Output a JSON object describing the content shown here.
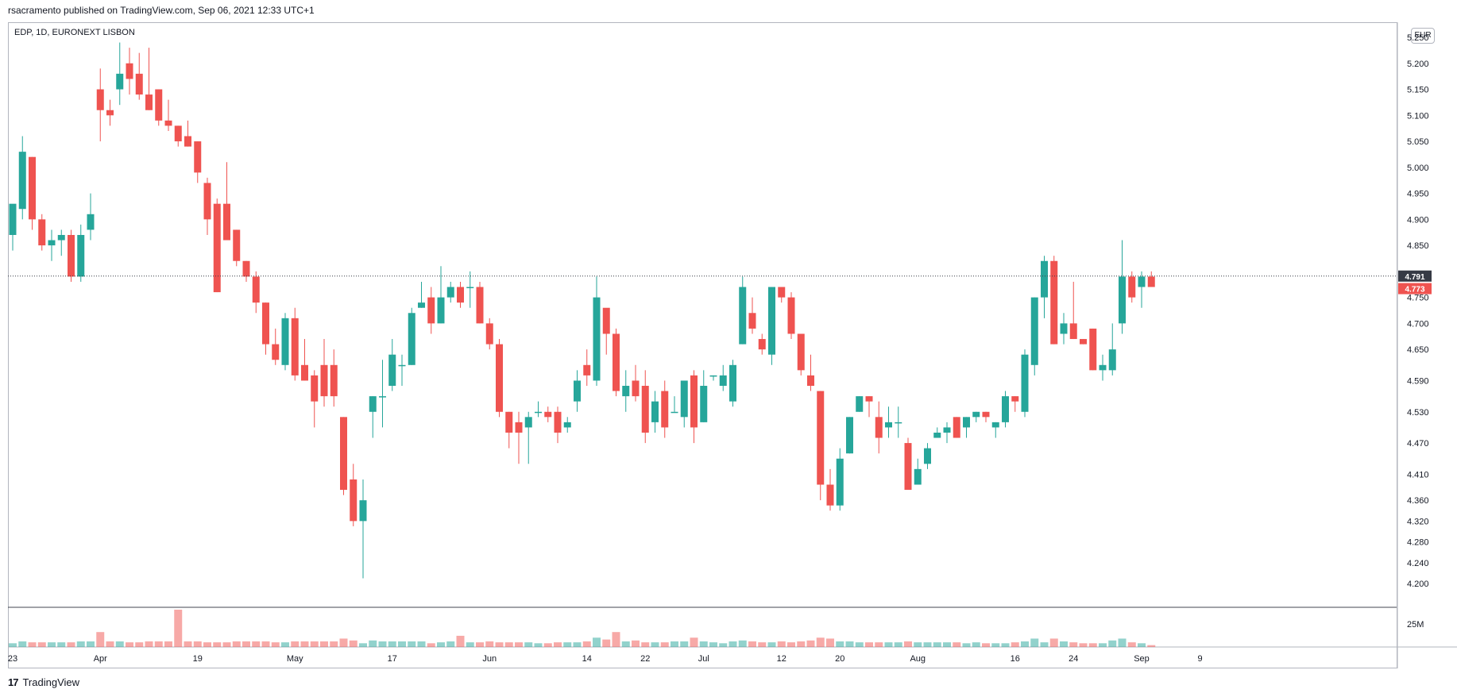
{
  "header": {
    "published": "rsacramento published on TradingView.com, Sep 06, 2021 12:33 UTC+1"
  },
  "symbol_info": "EDP, 1D, EURONEXT LISBON",
  "currency_label": "EUR",
  "footer": {
    "brand": "TradingView",
    "logo_glyph": "17"
  },
  "colors": {
    "up": "#26a69a",
    "down": "#ef5350",
    "last_tag": "#ef5350",
    "prev_tag": "#363a45",
    "grid_border": "#b2b5be"
  },
  "chart_data": {
    "type": "candlestick",
    "instrument": "EDP",
    "timeframe": "1D",
    "exchange": "EURONEXT LISBON",
    "currency": "EUR",
    "y_ticks": [
      "5.250",
      "5.200",
      "5.150",
      "5.100",
      "5.050",
      "5.000",
      "4.950",
      "4.900",
      "4.850",
      "4.750",
      "4.700",
      "4.650",
      "4.590",
      "4.530",
      "4.470",
      "4.410",
      "4.360",
      "4.320",
      "4.280",
      "4.240",
      "4.200"
    ],
    "x_ticks": [
      "23",
      "Apr",
      "19",
      "May",
      "17",
      "Jun",
      "14",
      "22",
      "Jul",
      "12",
      "20",
      "Aug",
      "16",
      "24",
      "Sep",
      "9"
    ],
    "x_tick_index": [
      0,
      9,
      19,
      29,
      39,
      49,
      59,
      65,
      71,
      79,
      85,
      93,
      103,
      109,
      116,
      122
    ],
    "price_tags": {
      "last": "4.773",
      "prev": "4.791"
    },
    "volume_axis_label": "25M",
    "volume_scale_max": 40,
    "candles": [
      {
        "o": 4.87,
        "h": 4.92,
        "l": 4.84,
        "c": 4.93,
        "v": 4
      },
      {
        "o": 4.92,
        "h": 5.06,
        "l": 4.9,
        "c": 5.03,
        "v": 6
      },
      {
        "o": 5.02,
        "h": 5.02,
        "l": 4.88,
        "c": 4.9,
        "v": 5
      },
      {
        "o": 4.9,
        "h": 4.91,
        "l": 4.84,
        "c": 4.85,
        "v": 5
      },
      {
        "o": 4.85,
        "h": 4.88,
        "l": 4.82,
        "c": 4.86,
        "v": 5
      },
      {
        "o": 4.86,
        "h": 4.88,
        "l": 4.83,
        "c": 4.87,
        "v": 5
      },
      {
        "o": 4.87,
        "h": 4.88,
        "l": 4.78,
        "c": 4.79,
        "v": 5
      },
      {
        "o": 4.79,
        "h": 4.89,
        "l": 4.78,
        "c": 4.87,
        "v": 6
      },
      {
        "o": 4.88,
        "h": 4.95,
        "l": 4.86,
        "c": 4.91,
        "v": 6
      },
      {
        "o": 5.15,
        "h": 5.19,
        "l": 5.05,
        "c": 5.11,
        "v": 16
      },
      {
        "o": 5.11,
        "h": 5.13,
        "l": 5.08,
        "c": 5.1,
        "v": 6
      },
      {
        "o": 5.15,
        "h": 5.24,
        "l": 5.12,
        "c": 5.18,
        "v": 6
      },
      {
        "o": 5.2,
        "h": 5.23,
        "l": 5.14,
        "c": 5.17,
        "v": 5
      },
      {
        "o": 5.18,
        "h": 5.22,
        "l": 5.13,
        "c": 5.14,
        "v": 5
      },
      {
        "o": 5.14,
        "h": 5.23,
        "l": 5.11,
        "c": 5.11,
        "v": 6
      },
      {
        "o": 5.15,
        "h": 5.15,
        "l": 5.08,
        "c": 5.09,
        "v": 6
      },
      {
        "o": 5.09,
        "h": 5.13,
        "l": 5.07,
        "c": 5.08,
        "v": 6
      },
      {
        "o": 5.08,
        "h": 5.08,
        "l": 5.04,
        "c": 5.05,
        "v": 40
      },
      {
        "o": 5.06,
        "h": 5.09,
        "l": 5.04,
        "c": 5.04,
        "v": 6
      },
      {
        "o": 5.05,
        "h": 5.05,
        "l": 4.97,
        "c": 4.99,
        "v": 6
      },
      {
        "o": 4.97,
        "h": 4.98,
        "l": 4.87,
        "c": 4.9,
        "v": 5
      },
      {
        "o": 4.93,
        "h": 4.94,
        "l": 4.76,
        "c": 4.76,
        "v": 5
      },
      {
        "o": 4.93,
        "h": 5.01,
        "l": 4.86,
        "c": 4.86,
        "v": 5
      },
      {
        "o": 4.88,
        "h": 4.88,
        "l": 4.81,
        "c": 4.82,
        "v": 6
      },
      {
        "o": 4.82,
        "h": 4.82,
        "l": 4.78,
        "c": 4.79,
        "v": 6
      },
      {
        "o": 4.79,
        "h": 4.8,
        "l": 4.72,
        "c": 4.74,
        "v": 6
      },
      {
        "o": 4.74,
        "h": 4.74,
        "l": 4.64,
        "c": 4.66,
        "v": 6
      },
      {
        "o": 4.66,
        "h": 4.69,
        "l": 4.62,
        "c": 4.63,
        "v": 5
      },
      {
        "o": 4.62,
        "h": 4.72,
        "l": 4.61,
        "c": 4.71,
        "v": 5
      },
      {
        "o": 4.71,
        "h": 4.73,
        "l": 4.59,
        "c": 4.6,
        "v": 6
      },
      {
        "o": 4.62,
        "h": 4.67,
        "l": 4.59,
        "c": 4.59,
        "v": 6
      },
      {
        "o": 4.6,
        "h": 4.61,
        "l": 4.5,
        "c": 4.55,
        "v": 6
      },
      {
        "o": 4.62,
        "h": 4.67,
        "l": 4.54,
        "c": 4.56,
        "v": 6
      },
      {
        "o": 4.62,
        "h": 4.65,
        "l": 4.54,
        "c": 4.56,
        "v": 6
      },
      {
        "o": 4.52,
        "h": 4.52,
        "l": 4.37,
        "c": 4.38,
        "v": 9
      },
      {
        "o": 4.4,
        "h": 4.43,
        "l": 4.31,
        "c": 4.32,
        "v": 7
      },
      {
        "o": 4.32,
        "h": 4.4,
        "l": 4.21,
        "c": 4.36,
        "v": 4
      },
      {
        "o": 4.53,
        "h": 4.56,
        "l": 4.48,
        "c": 4.56,
        "v": 7
      },
      {
        "o": 4.56,
        "h": 4.63,
        "l": 4.5,
        "c": 4.56,
        "v": 6
      },
      {
        "o": 4.58,
        "h": 4.67,
        "l": 4.57,
        "c": 4.64,
        "v": 6
      },
      {
        "o": 4.62,
        "h": 4.64,
        "l": 4.58,
        "c": 4.62,
        "v": 6
      },
      {
        "o": 4.62,
        "h": 4.73,
        "l": 4.62,
        "c": 4.72,
        "v": 6
      },
      {
        "o": 4.73,
        "h": 4.78,
        "l": 4.73,
        "c": 4.74,
        "v": 6
      },
      {
        "o": 4.75,
        "h": 4.77,
        "l": 4.68,
        "c": 4.7,
        "v": 4
      },
      {
        "o": 4.7,
        "h": 4.81,
        "l": 4.7,
        "c": 4.75,
        "v": 5
      },
      {
        "o": 4.75,
        "h": 4.78,
        "l": 4.74,
        "c": 4.77,
        "v": 6
      },
      {
        "o": 4.77,
        "h": 4.78,
        "l": 4.73,
        "c": 4.74,
        "v": 12
      },
      {
        "o": 4.77,
        "h": 4.8,
        "l": 4.73,
        "c": 4.77,
        "v": 5
      },
      {
        "o": 4.77,
        "h": 4.78,
        "l": 4.7,
        "c": 4.7,
        "v": 5
      },
      {
        "o": 4.7,
        "h": 4.71,
        "l": 4.65,
        "c": 4.66,
        "v": 6
      },
      {
        "o": 4.66,
        "h": 4.67,
        "l": 4.52,
        "c": 4.53,
        "v": 5
      },
      {
        "o": 4.53,
        "h": 4.53,
        "l": 4.46,
        "c": 4.49,
        "v": 5
      },
      {
        "o": 4.51,
        "h": 4.53,
        "l": 4.43,
        "c": 4.49,
        "v": 5
      },
      {
        "o": 4.5,
        "h": 4.53,
        "l": 4.43,
        "c": 4.52,
        "v": 5
      },
      {
        "o": 4.53,
        "h": 4.55,
        "l": 4.52,
        "c": 4.53,
        "v": 4
      },
      {
        "o": 4.53,
        "h": 4.54,
        "l": 4.51,
        "c": 4.52,
        "v": 4
      },
      {
        "o": 4.53,
        "h": 4.54,
        "l": 4.47,
        "c": 4.49,
        "v": 5
      },
      {
        "o": 4.5,
        "h": 4.52,
        "l": 4.49,
        "c": 4.51,
        "v": 5
      },
      {
        "o": 4.55,
        "h": 4.61,
        "l": 4.53,
        "c": 4.59,
        "v": 5
      },
      {
        "o": 4.62,
        "h": 4.65,
        "l": 4.58,
        "c": 4.6,
        "v": 6
      },
      {
        "o": 4.59,
        "h": 4.79,
        "l": 4.58,
        "c": 4.75,
        "v": 10
      },
      {
        "o": 4.73,
        "h": 4.72,
        "l": 4.64,
        "c": 4.68,
        "v": 8
      },
      {
        "o": 4.68,
        "h": 4.69,
        "l": 4.56,
        "c": 4.57,
        "v": 16
      },
      {
        "o": 4.56,
        "h": 4.61,
        "l": 4.53,
        "c": 4.58,
        "v": 6
      },
      {
        "o": 4.59,
        "h": 4.62,
        "l": 4.55,
        "c": 4.56,
        "v": 7
      },
      {
        "o": 4.58,
        "h": 4.61,
        "l": 4.47,
        "c": 4.49,
        "v": 5
      },
      {
        "o": 4.51,
        "h": 4.57,
        "l": 4.49,
        "c": 4.55,
        "v": 5
      },
      {
        "o": 4.57,
        "h": 4.59,
        "l": 4.48,
        "c": 4.5,
        "v": 5
      },
      {
        "o": 4.53,
        "h": 4.56,
        "l": 4.53,
        "c": 4.53,
        "v": 6
      },
      {
        "o": 4.52,
        "h": 4.58,
        "l": 4.5,
        "c": 4.59,
        "v": 6
      },
      {
        "o": 4.6,
        "h": 4.61,
        "l": 4.47,
        "c": 4.5,
        "v": 10
      },
      {
        "o": 4.51,
        "h": 4.61,
        "l": 4.51,
        "c": 4.58,
        "v": 6
      },
      {
        "o": 4.6,
        "h": 4.6,
        "l": 4.59,
        "c": 4.6,
        "v": 5
      },
      {
        "o": 4.58,
        "h": 4.62,
        "l": 4.57,
        "c": 4.6,
        "v": 4
      },
      {
        "o": 4.55,
        "h": 4.63,
        "l": 4.54,
        "c": 4.62,
        "v": 6
      },
      {
        "o": 4.66,
        "h": 4.79,
        "l": 4.66,
        "c": 4.77,
        "v": 7
      },
      {
        "o": 4.72,
        "h": 4.75,
        "l": 4.68,
        "c": 4.69,
        "v": 6
      },
      {
        "o": 4.67,
        "h": 4.68,
        "l": 4.64,
        "c": 4.65,
        "v": 5
      },
      {
        "o": 4.64,
        "h": 4.77,
        "l": 4.62,
        "c": 4.77,
        "v": 5
      },
      {
        "o": 4.77,
        "h": 4.77,
        "l": 4.74,
        "c": 4.75,
        "v": 6
      },
      {
        "o": 4.75,
        "h": 4.76,
        "l": 4.67,
        "c": 4.68,
        "v": 5
      },
      {
        "o": 4.68,
        "h": 4.68,
        "l": 4.6,
        "c": 4.61,
        "v": 6
      },
      {
        "o": 4.6,
        "h": 4.64,
        "l": 4.57,
        "c": 4.58,
        "v": 7
      },
      {
        "o": 4.57,
        "h": 4.57,
        "l": 4.36,
        "c": 4.39,
        "v": 10
      },
      {
        "o": 4.39,
        "h": 4.42,
        "l": 4.34,
        "c": 4.35,
        "v": 9
      },
      {
        "o": 4.35,
        "h": 4.46,
        "l": 4.34,
        "c": 4.44,
        "v": 6
      },
      {
        "o": 4.45,
        "h": 4.52,
        "l": 4.45,
        "c": 4.52,
        "v": 6
      },
      {
        "o": 4.53,
        "h": 4.56,
        "l": 4.53,
        "c": 4.56,
        "v": 5
      },
      {
        "o": 4.56,
        "h": 4.56,
        "l": 4.52,
        "c": 4.55,
        "v": 5
      },
      {
        "o": 4.52,
        "h": 4.55,
        "l": 4.45,
        "c": 4.48,
        "v": 5
      },
      {
        "o": 4.5,
        "h": 4.54,
        "l": 4.48,
        "c": 4.51,
        "v": 5
      },
      {
        "o": 4.51,
        "h": 4.54,
        "l": 4.48,
        "c": 4.51,
        "v": 5
      },
      {
        "o": 4.47,
        "h": 4.48,
        "l": 4.38,
        "c": 4.38,
        "v": 6
      },
      {
        "o": 4.39,
        "h": 4.44,
        "l": 4.39,
        "c": 4.42,
        "v": 5
      },
      {
        "o": 4.43,
        "h": 4.47,
        "l": 4.42,
        "c": 4.46,
        "v": 5
      },
      {
        "o": 4.48,
        "h": 4.5,
        "l": 4.48,
        "c": 4.49,
        "v": 5
      },
      {
        "o": 4.49,
        "h": 4.51,
        "l": 4.47,
        "c": 4.5,
        "v": 5
      },
      {
        "o": 4.52,
        "h": 4.52,
        "l": 4.48,
        "c": 4.48,
        "v": 5
      },
      {
        "o": 4.5,
        "h": 4.52,
        "l": 4.48,
        "c": 4.52,
        "v": 4
      },
      {
        "o": 4.52,
        "h": 4.53,
        "l": 4.51,
        "c": 4.53,
        "v": 5
      },
      {
        "o": 4.53,
        "h": 4.53,
        "l": 4.51,
        "c": 4.52,
        "v": 4
      },
      {
        "o": 4.5,
        "h": 4.51,
        "l": 4.48,
        "c": 4.51,
        "v": 4
      },
      {
        "o": 4.51,
        "h": 4.57,
        "l": 4.5,
        "c": 4.56,
        "v": 4
      },
      {
        "o": 4.56,
        "h": 4.56,
        "l": 4.53,
        "c": 4.55,
        "v": 5
      },
      {
        "o": 4.53,
        "h": 4.65,
        "l": 4.52,
        "c": 4.64,
        "v": 6
      },
      {
        "o": 4.62,
        "h": 4.75,
        "l": 4.6,
        "c": 4.75,
        "v": 9
      },
      {
        "o": 4.75,
        "h": 4.83,
        "l": 4.71,
        "c": 4.82,
        "v": 5
      },
      {
        "o": 4.82,
        "h": 4.83,
        "l": 4.66,
        "c": 4.66,
        "v": 9
      },
      {
        "o": 4.68,
        "h": 4.72,
        "l": 4.66,
        "c": 4.7,
        "v": 6
      },
      {
        "o": 4.7,
        "h": 4.78,
        "l": 4.67,
        "c": 4.67,
        "v": 5
      },
      {
        "o": 4.67,
        "h": 4.67,
        "l": 4.66,
        "c": 4.66,
        "v": 4
      },
      {
        "o": 4.69,
        "h": 4.69,
        "l": 4.61,
        "c": 4.61,
        "v": 4
      },
      {
        "o": 4.61,
        "h": 4.64,
        "l": 4.59,
        "c": 4.62,
        "v": 4
      },
      {
        "o": 4.61,
        "h": 4.7,
        "l": 4.6,
        "c": 4.65,
        "v": 7
      },
      {
        "o": 4.7,
        "h": 4.86,
        "l": 4.68,
        "c": 4.79,
        "v": 9
      },
      {
        "o": 4.79,
        "h": 4.8,
        "l": 4.74,
        "c": 4.75,
        "v": 5
      },
      {
        "o": 4.77,
        "h": 4.8,
        "l": 4.73,
        "c": 4.79,
        "v": 4
      },
      {
        "o": 4.79,
        "h": 4.8,
        "l": 4.77,
        "c": 4.77,
        "v": 2
      }
    ]
  }
}
